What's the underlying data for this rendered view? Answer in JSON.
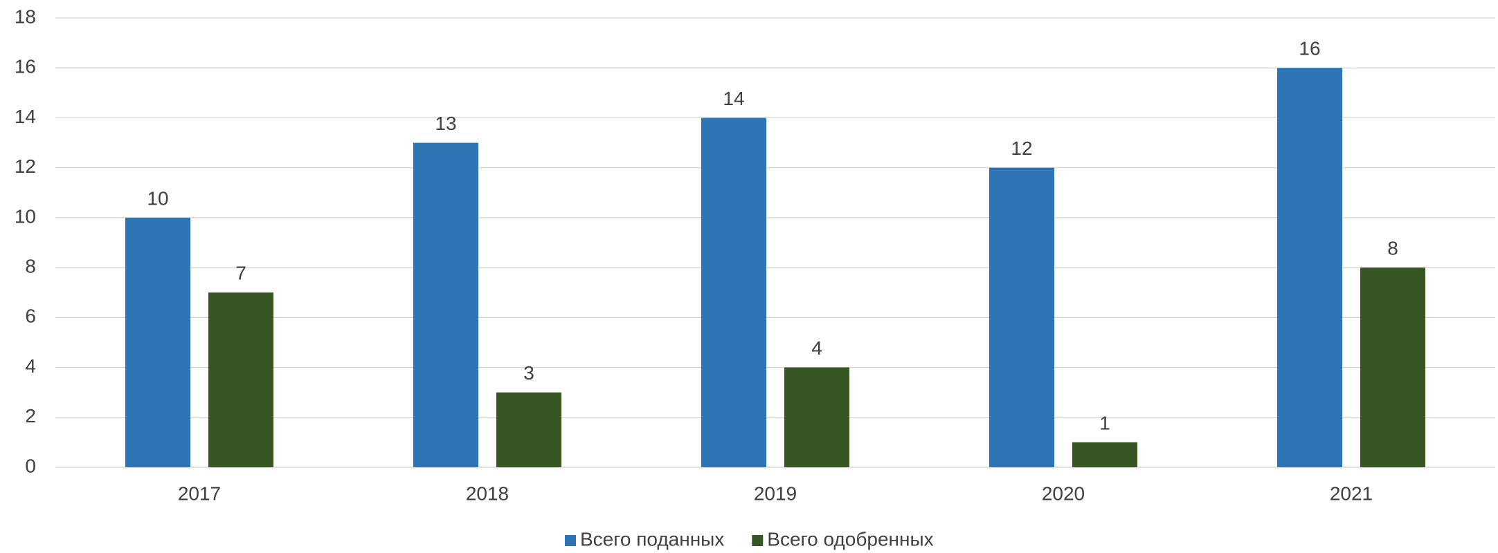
{
  "chart_data": {
    "type": "bar",
    "categories": [
      "2017",
      "2018",
      "2019",
      "2020",
      "2021"
    ],
    "series": [
      {
        "name": "Всего поданных",
        "color": "#2e75b6",
        "values": [
          10,
          13,
          14,
          12,
          16
        ]
      },
      {
        "name": "Всего одобренных",
        "color": "#375623",
        "values": [
          7,
          3,
          4,
          1,
          8
        ]
      }
    ],
    "ylim": [
      0,
      18
    ],
    "yticks": [
      0,
      2,
      4,
      6,
      8,
      10,
      12,
      14,
      16,
      18
    ],
    "grid": true,
    "legend": "bottom"
  }
}
